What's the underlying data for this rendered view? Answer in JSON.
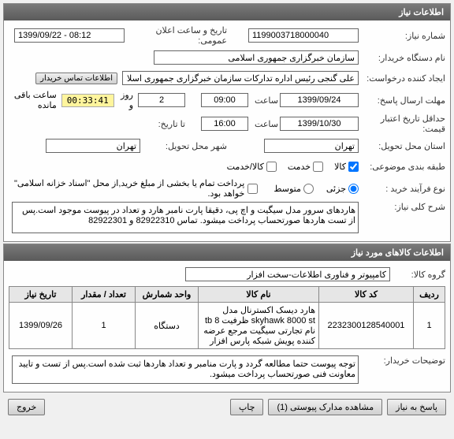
{
  "panels": {
    "info": {
      "title": "اطلاعات نیاز"
    },
    "goods": {
      "title": "اطلاعات کالاهای مورد نیاز"
    }
  },
  "fields": {
    "need_no_label": "شماره نیاز:",
    "need_no": "1199003718000040",
    "announce_label": "تاریخ و ساعت اعلان عمومی:",
    "announce": "1399/09/22 - 08:12",
    "buyer_label": "نام دستگاه خریدار:",
    "buyer": "سازمان خبرگزاری جمهوری اسلامی",
    "creator_label": "ایجاد کننده درخواست:",
    "creator": "علی گنجی رئیس اداره تدارکات سازمان خبرگزاری جمهوری اسلامی",
    "contact_btn": "اطلاعات تماس خریدار",
    "reply_deadline_label": "مهلت ارسال پاسخ:",
    "reply_date": "1399/09/24",
    "time_label": "ساعت",
    "reply_time": "09:00",
    "and": "و",
    "days": "2",
    "days_label": "روز و",
    "timer": "00:33:41",
    "remaining_label": "ساعت باقی مانده",
    "validity_label": "حداقل تاریخ اعتبار قیمت:",
    "validity_date": "1399/10/30",
    "validity_time": "16:00",
    "to_date_label": "تا تاریخ:",
    "delivery_state_label": "استان محل تحویل:",
    "delivery_state": "تهران",
    "delivery_city_label": "شهر محل تحویل:",
    "delivery_city": "تهران",
    "classification_label": "طبقه بندی موضوعی:",
    "chk_goods": "کالا",
    "chk_service": "خدمت",
    "chk_both": "کالا/خدمت",
    "purchase_type_label": "نوع فرآیند خرید :",
    "radio_small": "جزئی",
    "radio_medium": "متوسط",
    "purchase_note": "پرداخت تمام یا بخشی از مبلغ خرید,از محل \"اسناد خزانه اسلامی\" خواهد بود.",
    "main_desc_label": "شرح کلی نیاز:",
    "main_desc": "هاردهای سرور مدل سیگیت و اچ پی، دقیقا پارت نامبر هارد و تعداد در پیوست موجود است.پس از تست هاردها صورتحساب پرداخت میشود. تماس 82922310 و 82922301",
    "goods_group_label": "گروه کالا:",
    "goods_group": "کامپیوتر و فناوری اطلاعات-سخت افزار",
    "buyer_notes_label": "توضیحات خریدار:",
    "buyer_notes": "توجه پیوست حتما مطالعه گردد و پارت منامبر و تعداد هاردها ثبت شده است.پس از تست و تایید معاونت فنی صورتحساب پرداخت میشود."
  },
  "table": {
    "headers": {
      "row": "ردیف",
      "code": "کد کالا",
      "name": "نام کالا",
      "unit": "واحد شمارش",
      "qty": "تعداد / مقدار",
      "date": "تاریخ نیاز"
    },
    "rows": [
      {
        "row": "1",
        "code": "2232300128540001",
        "name": "هارد دیسک اکسترنال مدل skyhawk 8000 st ظرفیت tb 8 نام تجارتی سیگیت مرجع عرضه کننده پویش شبکه پارس افزار",
        "unit": "دستگاه",
        "qty": "1",
        "date": "1399/09/26"
      }
    ]
  },
  "buttons": {
    "reply": "پاسخ به نیاز",
    "attachments": "مشاهده مدارک پیوستی (1)",
    "print": "چاپ",
    "close": "خروج"
  }
}
